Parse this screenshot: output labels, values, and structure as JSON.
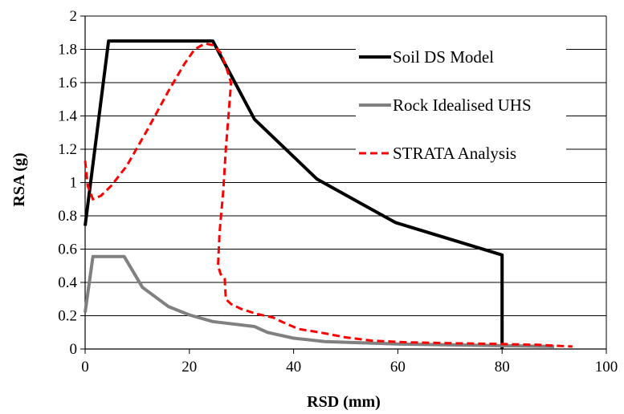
{
  "chart_data": {
    "type": "line",
    "xlabel": "RSD (mm)",
    "ylabel": "RSA (g)",
    "xlim": [
      0,
      100
    ],
    "ylim": [
      0,
      2
    ],
    "xticks": [
      0,
      20,
      40,
      60,
      80,
      100
    ],
    "yticks": [
      0,
      0.2,
      0.4,
      0.6,
      0.8,
      1,
      1.2,
      1.4,
      1.6,
      1.8,
      2
    ],
    "xtick_labels": [
      "0",
      "20",
      "40",
      "60",
      "80",
      "100"
    ],
    "ytick_labels": [
      "0",
      "0.2",
      "0.4",
      "0.6",
      "0.8",
      "1",
      "1.2",
      "1.4",
      "1.6",
      "1.8",
      "2"
    ],
    "grid": "horizontal",
    "legend_position": "top-right",
    "series": [
      {
        "name": "Soil DS Model",
        "color": "#000000",
        "style": "solid",
        "points": [
          [
            0,
            0.74
          ],
          [
            4.5,
            1.85
          ],
          [
            24.5,
            1.85
          ],
          [
            32.5,
            1.38
          ],
          [
            44.5,
            1.02
          ],
          [
            59.5,
            0.76
          ],
          [
            80,
            0.565
          ],
          [
            80,
            0
          ]
        ]
      },
      {
        "name": "Rock Idealised UHS",
        "color": "#808080",
        "style": "solid",
        "points": [
          [
            0,
            0.22
          ],
          [
            1.5,
            0.555
          ],
          [
            7.5,
            0.555
          ],
          [
            11,
            0.37
          ],
          [
            16,
            0.255
          ],
          [
            20,
            0.205
          ],
          [
            24.5,
            0.165
          ],
          [
            32.5,
            0.135
          ],
          [
            35,
            0.1
          ],
          [
            40,
            0.065
          ],
          [
            46,
            0.045
          ],
          [
            60,
            0.03
          ],
          [
            80,
            0.02
          ],
          [
            90,
            0.015
          ]
        ]
      },
      {
        "name": "STRATA Analysis",
        "color": "#ff0000",
        "style": "dashed",
        "points": [
          [
            0,
            1.13
          ],
          [
            0.5,
            0.98
          ],
          [
            1.5,
            0.9
          ],
          [
            3,
            0.92
          ],
          [
            5,
            0.98
          ],
          [
            8,
            1.1
          ],
          [
            12,
            1.32
          ],
          [
            16,
            1.55
          ],
          [
            19,
            1.71
          ],
          [
            21,
            1.8
          ],
          [
            23,
            1.835
          ],
          [
            24.5,
            1.825
          ],
          [
            26,
            1.78
          ],
          [
            27,
            1.7
          ],
          [
            28,
            1.6
          ],
          [
            27.5,
            1.4
          ],
          [
            27,
            1.2
          ],
          [
            26.5,
            0.95
          ],
          [
            25.8,
            0.7
          ],
          [
            25.5,
            0.5
          ],
          [
            26,
            0.45
          ],
          [
            26.8,
            0.42
          ],
          [
            27,
            0.3
          ],
          [
            28,
            0.27
          ],
          [
            30,
            0.24
          ],
          [
            33,
            0.21
          ],
          [
            36,
            0.19
          ],
          [
            38,
            0.16
          ],
          [
            41,
            0.12
          ],
          [
            45,
            0.1
          ],
          [
            50,
            0.07
          ],
          [
            55,
            0.05
          ],
          [
            62,
            0.04
          ],
          [
            70,
            0.035
          ],
          [
            80,
            0.03
          ],
          [
            87,
            0.025
          ],
          [
            90,
            0.02
          ],
          [
            93.5,
            0.015
          ]
        ]
      }
    ]
  }
}
